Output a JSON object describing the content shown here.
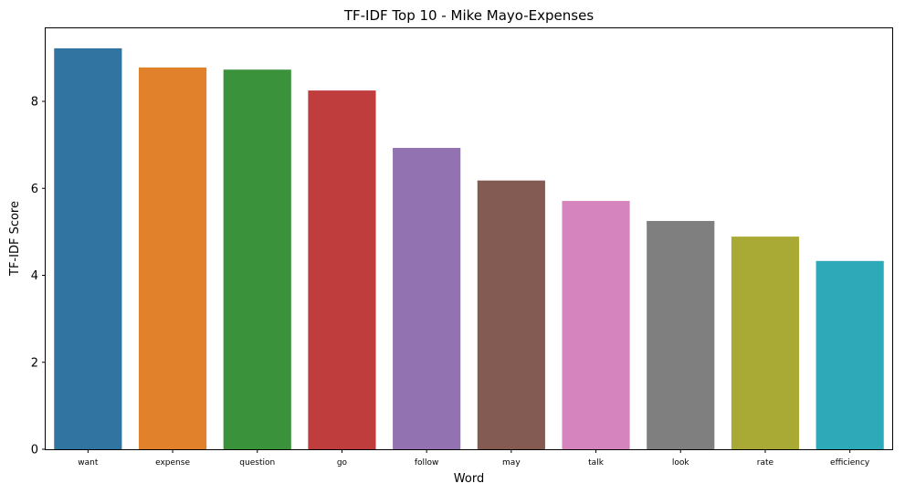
{
  "chart_data": {
    "type": "bar",
    "title": "TF-IDF Top 10 - Mike Mayo-Expenses",
    "xlabel": "Word",
    "ylabel": "TF-IDF Score",
    "categories": [
      "want",
      "expense",
      "question",
      "go",
      "follow",
      "may",
      "talk",
      "look",
      "rate",
      "efficiency"
    ],
    "values": [
      9.22,
      8.78,
      8.73,
      8.25,
      6.93,
      6.18,
      5.71,
      5.25,
      4.89,
      4.33
    ],
    "colors": [
      "#3274a1",
      "#e1812c",
      "#3a923a",
      "#c03d3e",
      "#9372b2",
      "#845b53",
      "#d684bd",
      "#7f7f7f",
      "#a9aa35",
      "#2ea9b8"
    ],
    "ylim": [
      0,
      9.68
    ],
    "yticks": [
      0,
      2,
      4,
      6,
      8
    ],
    "grid": false,
    "legend": "none"
  }
}
